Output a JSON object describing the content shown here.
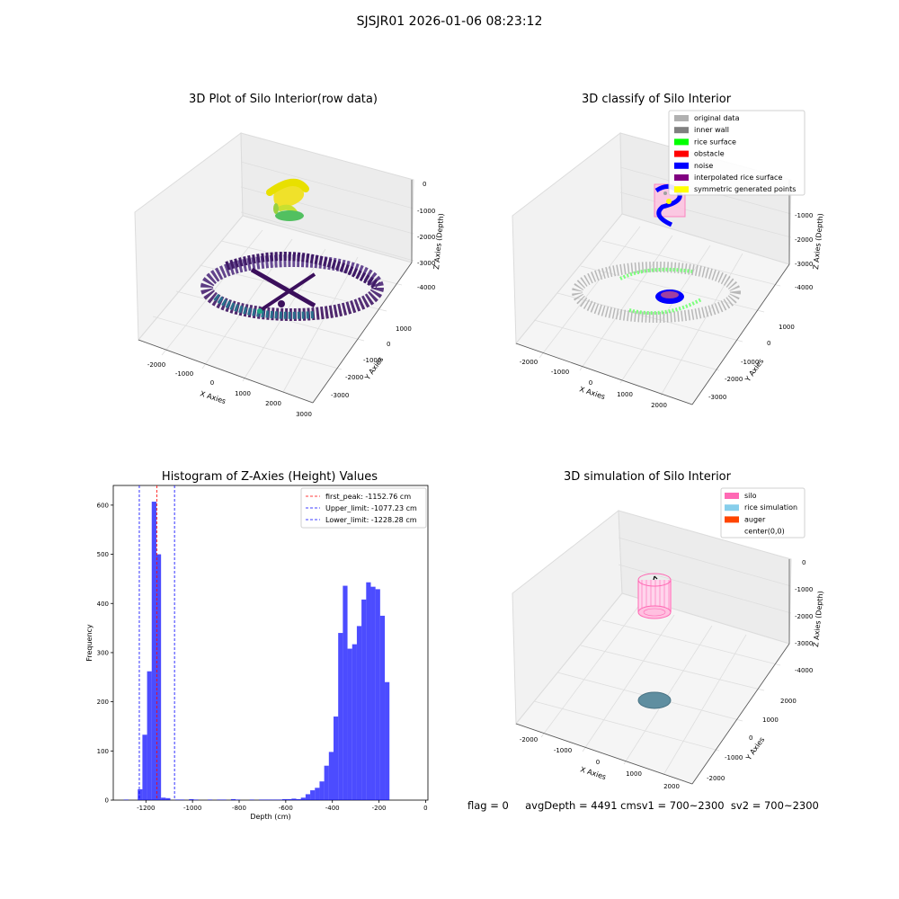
{
  "suptitle": "SJSJR01 2026-01-06 08:23:12",
  "panel1": {
    "title": "3D Plot of Silo Interior(row data)",
    "xlabel": "X Axies",
    "ylabel": "Y Axies",
    "zlabel": "Z Axies (Depth)",
    "xticks": [
      "-2000",
      "-1000",
      "0",
      "1000",
      "2000",
      "3000"
    ],
    "yticks": [
      "1000",
      "0",
      "-1000",
      "-2000",
      "-3000"
    ],
    "zticks": [
      "0",
      "-1000",
      "-2000",
      "-3000",
      "-4000"
    ]
  },
  "panel2": {
    "title": "3D classify of Silo Interior",
    "xlabel": "X Axies",
    "ylabel": "Y Axies",
    "zlabel": "Z Axies (Depth)",
    "xticks": [
      "-2000",
      "-1000",
      "0",
      "1000",
      "2000"
    ],
    "yticks": [
      "1000",
      "0",
      "-1000",
      "-2000",
      "-3000"
    ],
    "zticks": [
      "-1000",
      "-2000",
      "-3000",
      "-4000"
    ],
    "legend": [
      {
        "label": "original data",
        "color": "#b0b0b0"
      },
      {
        "label": "inner wall",
        "color": "#808080"
      },
      {
        "label": "rice surface",
        "color": "#00ff00"
      },
      {
        "label": "obstacle",
        "color": "#ff0000"
      },
      {
        "label": "noise",
        "color": "#0000ff"
      },
      {
        "label": "interpolated rice surface",
        "color": "#800080"
      },
      {
        "label": "symmetric generated points",
        "color": "#ffff00"
      }
    ]
  },
  "chart_data": {
    "type": "bar",
    "title": "Histogram of Z-Axies (Height) Values",
    "xlabel": "Depth (cm)",
    "ylabel": "Frequency",
    "xlim": [
      -1340,
      10
    ],
    "ylim": [
      0,
      640
    ],
    "xticks": [
      -1200,
      -1000,
      -800,
      -600,
      -400,
      -200,
      0
    ],
    "yticks": [
      0,
      100,
      200,
      300,
      400,
      500,
      600
    ],
    "bin_width": 20,
    "bins": [
      {
        "x": -1285,
        "v": 1
      },
      {
        "x": -1225,
        "v": 22
      },
      {
        "x": -1205,
        "v": 133
      },
      {
        "x": -1185,
        "v": 262
      },
      {
        "x": -1165,
        "v": 607
      },
      {
        "x": -1145,
        "v": 500
      },
      {
        "x": -1125,
        "v": 5
      },
      {
        "x": -1105,
        "v": 4
      },
      {
        "x": -1065,
        "v": 1
      },
      {
        "x": -1045,
        "v": 1
      },
      {
        "x": -1005,
        "v": 2
      },
      {
        "x": -985,
        "v": 1
      },
      {
        "x": -925,
        "v": 1
      },
      {
        "x": -885,
        "v": 1
      },
      {
        "x": -865,
        "v": 1
      },
      {
        "x": -825,
        "v": 2
      },
      {
        "x": -805,
        "v": 1
      },
      {
        "x": -745,
        "v": 1
      },
      {
        "x": -705,
        "v": 1
      },
      {
        "x": -685,
        "v": 1
      },
      {
        "x": -665,
        "v": 1
      },
      {
        "x": -645,
        "v": 1
      },
      {
        "x": -625,
        "v": 1
      },
      {
        "x": -605,
        "v": 2
      },
      {
        "x": -585,
        "v": 2
      },
      {
        "x": -565,
        "v": 3
      },
      {
        "x": -545,
        "v": 2
      },
      {
        "x": -525,
        "v": 5
      },
      {
        "x": -505,
        "v": 12
      },
      {
        "x": -485,
        "v": 20
      },
      {
        "x": -465,
        "v": 25
      },
      {
        "x": -445,
        "v": 38
      },
      {
        "x": -425,
        "v": 70
      },
      {
        "x": -405,
        "v": 98
      },
      {
        "x": -385,
        "v": 170
      },
      {
        "x": -365,
        "v": 340
      },
      {
        "x": -345,
        "v": 436
      },
      {
        "x": -325,
        "v": 308
      },
      {
        "x": -305,
        "v": 317
      },
      {
        "x": -285,
        "v": 354
      },
      {
        "x": -265,
        "v": 408
      },
      {
        "x": -245,
        "v": 443
      },
      {
        "x": -225,
        "v": 434
      },
      {
        "x": -205,
        "v": 429
      },
      {
        "x": -185,
        "v": 375
      },
      {
        "x": -165,
        "v": 240
      }
    ],
    "vlines": [
      {
        "x": -1152.76,
        "color": "#ff0000",
        "label": "first_peak: -1152.76 cm"
      },
      {
        "x": -1077.23,
        "color": "#0000ff",
        "label": "Upper_limit: -1077.23 cm"
      },
      {
        "x": -1228.28,
        "color": "#0000ff",
        "label": "Lower_limit: -1228.28 cm"
      }
    ],
    "bar_color": "#0000ff",
    "legend_position": "top-right"
  },
  "panel4": {
    "title": "3D simulation of Silo Interior",
    "xlabel": "X Axies",
    "ylabel": "Y Axies",
    "zlabel": "Z Axies (Depth)",
    "xticks": [
      "-2000",
      "-1000",
      "0",
      "1000",
      "2000"
    ],
    "yticks": [
      "2000",
      "1000",
      "0",
      "-1000",
      "-2000"
    ],
    "zticks": [
      "0",
      "-1000",
      "-2000",
      "-3000",
      "-4000"
    ],
    "legend": [
      {
        "label": "silo",
        "color": "#ff69b4"
      },
      {
        "label": "rice simulation",
        "color": "#87ceeb"
      },
      {
        "label": "auger",
        "color": "#ff4500"
      },
      {
        "label": "center(0,0)",
        "color": "none"
      }
    ]
  },
  "status_text": "flag = 0     avgDepth = 4491 cmsv1 = 700~2300  sv2 = 700~2300"
}
